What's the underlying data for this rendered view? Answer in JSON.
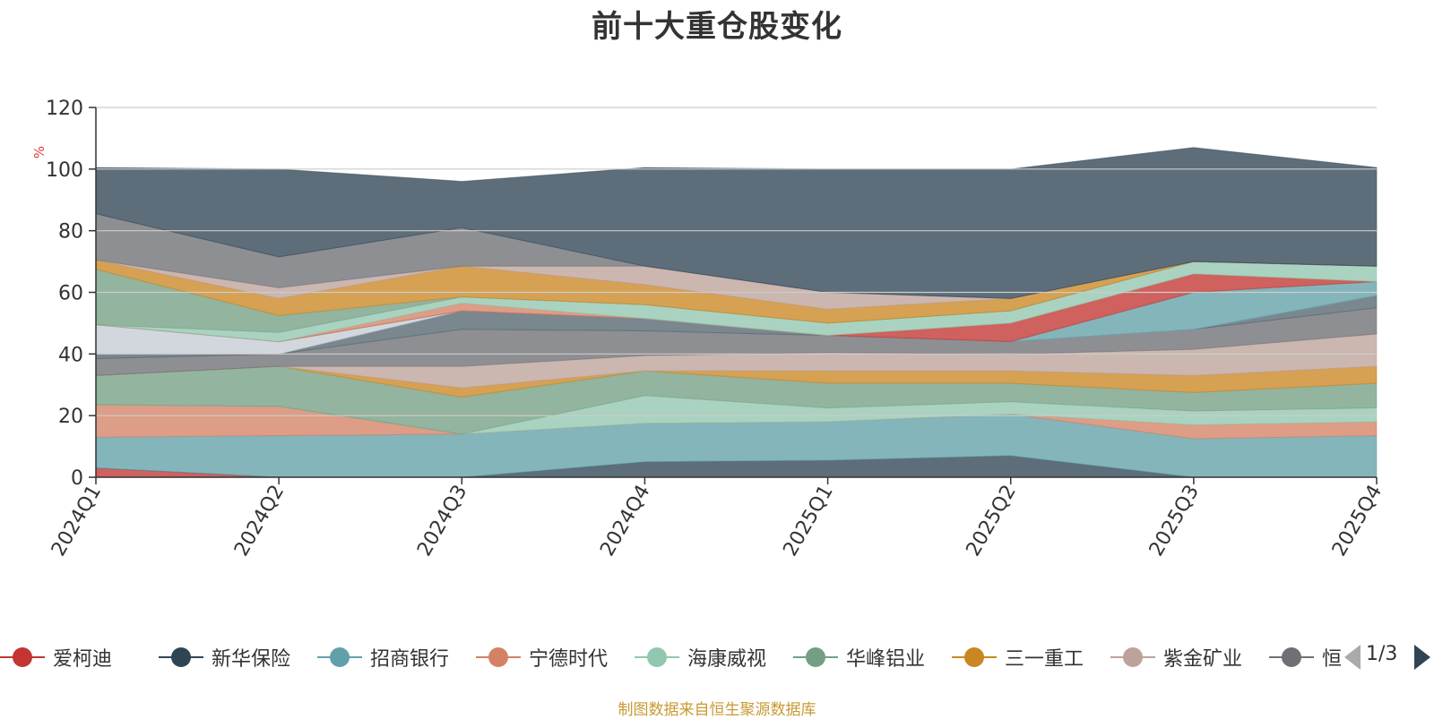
{
  "title": "前十大重仓股变化",
  "footnote": "制图数据来自恒生聚源数据库",
  "pager": {
    "text": "1/3"
  },
  "chart_data": {
    "type": "area",
    "stacked": true,
    "title": "前十大重仓股变化",
    "ylabel": "%",
    "ylim": [
      0,
      120
    ],
    "y_ticks": [
      0,
      20,
      40,
      60,
      80,
      100,
      120
    ],
    "categories": [
      "2024Q1",
      "2024Q2",
      "2024Q3",
      "2024Q4",
      "2025Q1",
      "2025Q2",
      "2025Q3",
      "2025Q4"
    ],
    "grid": true,
    "legend_position": "bottom",
    "series": [
      {
        "name": "爱柯迪",
        "legend": true,
        "color": "#c23531",
        "values": [
          3,
          0,
          0,
          0,
          0,
          0,
          0,
          0
        ]
      },
      {
        "name": "新华保险",
        "legend": true,
        "color": "#2f4554",
        "values": [
          0,
          0,
          0,
          5,
          5.5,
          7,
          0,
          0
        ]
      },
      {
        "name": "招商银行",
        "legend": true,
        "color": "#61a0a8",
        "values": [
          10,
          13.5,
          14,
          12.5,
          12.5,
          13.5,
          12.5,
          13.5
        ]
      },
      {
        "name": "宁德时代",
        "legend": true,
        "color": "#d48265",
        "values": [
          10.5,
          9.5,
          0,
          0,
          0,
          0,
          4.5,
          4.5
        ]
      },
      {
        "name": "海康威视",
        "legend": true,
        "color": "#91c7ae",
        "values": [
          0,
          0,
          0,
          9,
          4.5,
          4,
          4.5,
          4.5
        ]
      },
      {
        "name": "华峰铝业",
        "legend": true,
        "color": "#749f83",
        "values": [
          9.5,
          13,
          12,
          8,
          8,
          6,
          6,
          8
        ]
      },
      {
        "name": "三一重工",
        "legend": true,
        "color": "#ca8622",
        "values": [
          0,
          0,
          3,
          0,
          4,
          4,
          5.5,
          5.5
        ]
      },
      {
        "name": "紫金矿业",
        "legend": true,
        "color": "#bda29a",
        "values": [
          0,
          0,
          7,
          5,
          6,
          5.5,
          8.5,
          10.5
        ]
      },
      {
        "name": "恒瑞医药",
        "legend": true,
        "legend_label_visible": "恒",
        "color": "#6e7074",
        "values": [
          5.5,
          4,
          12,
          8,
          5.5,
          4,
          6.5,
          8.5
        ]
      },
      {
        "name": "",
        "color": "#546570",
        "values": [
          1.5,
          0,
          6,
          4,
          0,
          0,
          0,
          4
        ]
      },
      {
        "name": "",
        "color": "#c4ccd3",
        "values": [
          9.5,
          4,
          0,
          0,
          0,
          0,
          0,
          0
        ]
      },
      {
        "name": "",
        "color": "#61a0a8",
        "values": [
          0,
          0,
          0,
          0,
          0,
          0,
          12,
          4.5
        ]
      },
      {
        "name": "",
        "color": "#c23531",
        "values": [
          0,
          0,
          0,
          0,
          0,
          6,
          6,
          0
        ]
      },
      {
        "name": "",
        "color": "#d48265",
        "values": [
          0,
          0,
          2.5,
          0,
          0,
          0,
          0,
          0
        ]
      },
      {
        "name": "",
        "color": "#91c7ae",
        "values": [
          0,
          3,
          2,
          4.5,
          4,
          4,
          4,
          5
        ]
      },
      {
        "name": "",
        "color": "#749f83",
        "values": [
          18,
          5.5,
          0,
          0,
          0,
          0,
          0,
          0
        ]
      },
      {
        "name": "",
        "color": "#ca8622",
        "values": [
          3,
          5.5,
          10,
          6.5,
          4.5,
          4,
          0,
          0
        ]
      },
      {
        "name": "",
        "color": "#bda29a",
        "values": [
          0,
          3.5,
          0,
          6,
          5.5,
          0,
          0,
          0
        ]
      },
      {
        "name": "",
        "color": "#6e7074",
        "values": [
          15,
          10,
          12.5,
          0,
          0,
          0,
          0,
          0
        ]
      },
      {
        "name": "",
        "color": "#2f4554",
        "values": [
          15,
          28.5,
          15,
          32,
          40,
          42,
          37,
          32
        ]
      }
    ]
  }
}
